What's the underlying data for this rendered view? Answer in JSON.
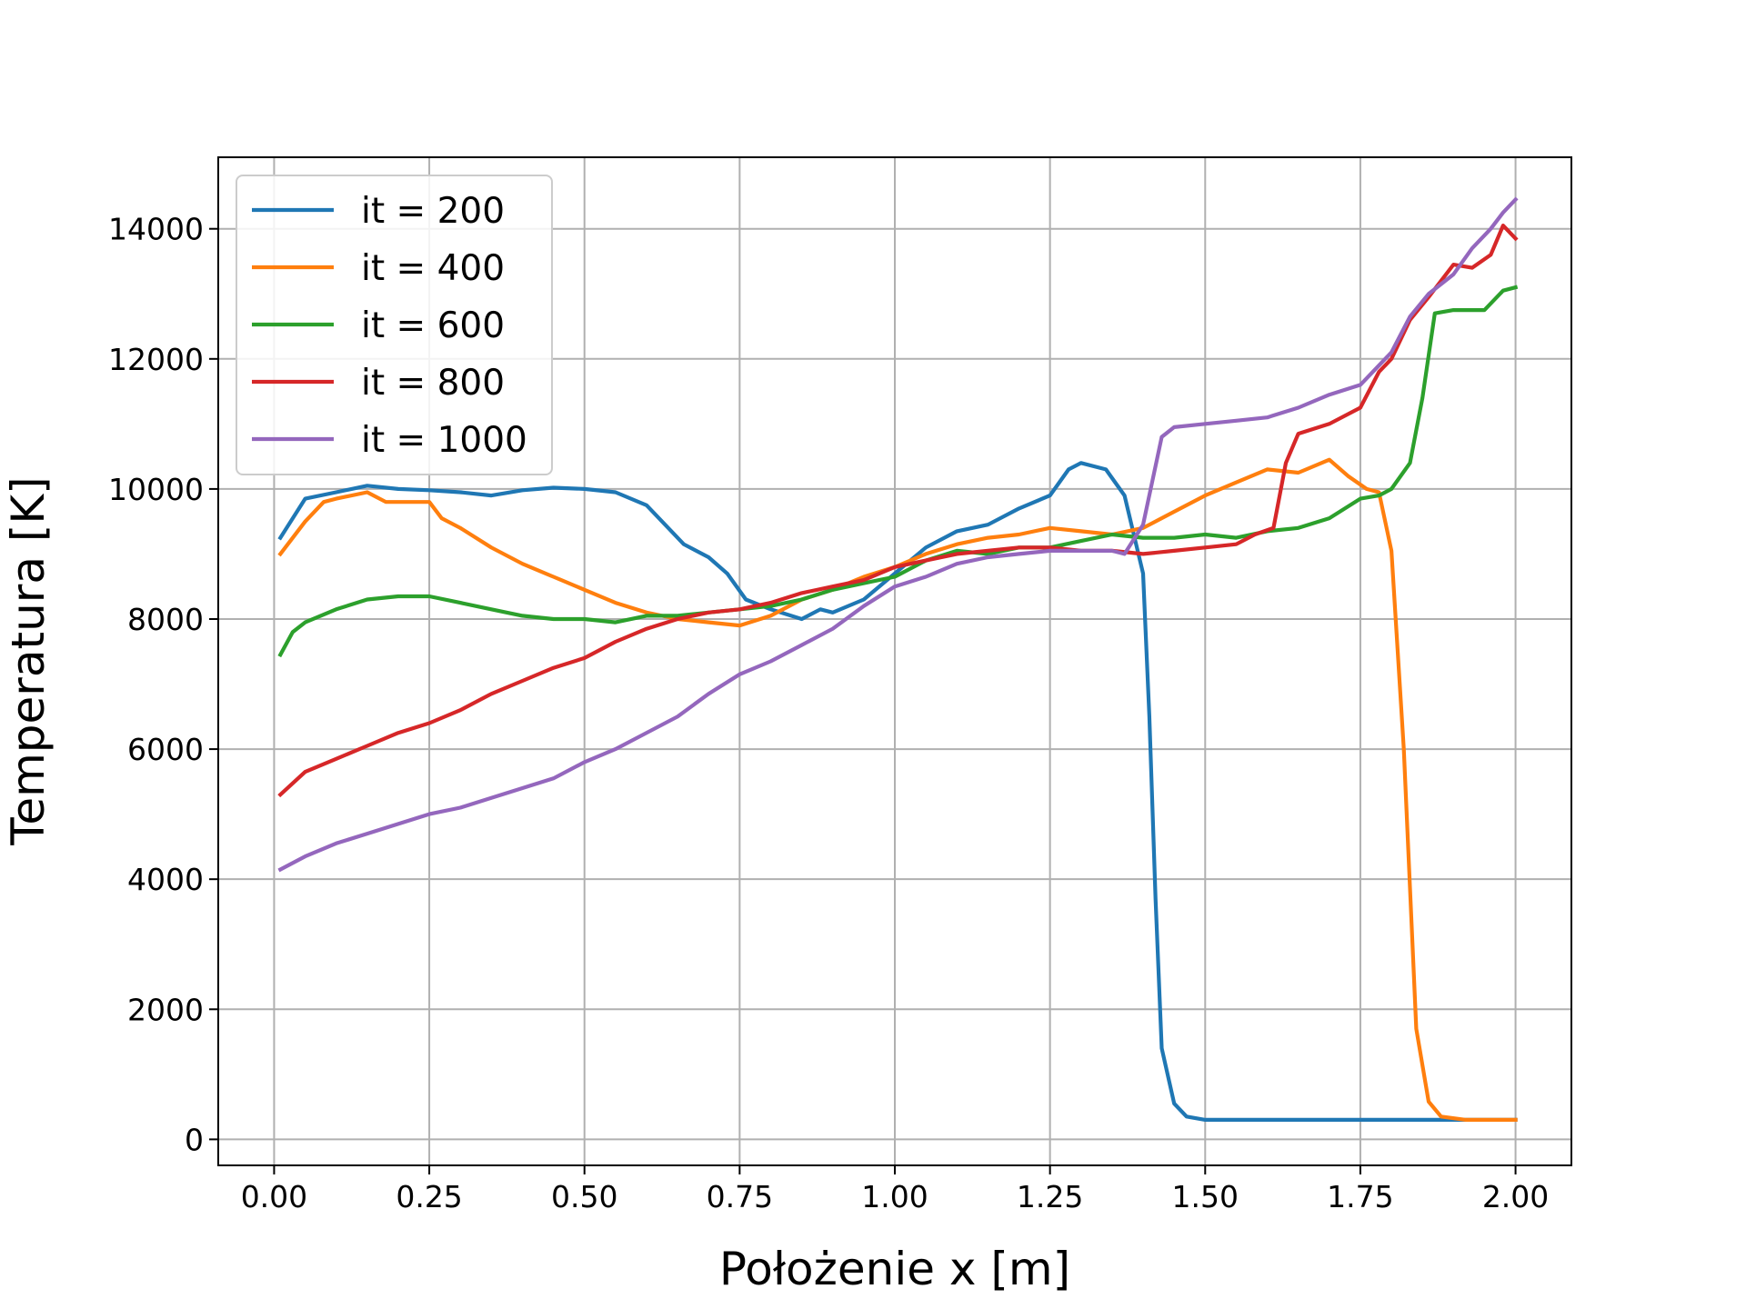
{
  "chart_data": {
    "type": "line",
    "title": "",
    "xlabel": "Położenie x [m]",
    "ylabel": "Temperatura [K]",
    "xlim": [
      -0.09,
      2.09
    ],
    "ylim": [
      -400,
      15100
    ],
    "xticks": [
      "0.00",
      "0.25",
      "0.50",
      "0.75",
      "1.00",
      "1.25",
      "1.50",
      "1.75",
      "2.00"
    ],
    "yticks": [
      "0",
      "2000",
      "4000",
      "6000",
      "8000",
      "10000",
      "12000",
      "14000"
    ],
    "grid": true,
    "legend_position": "top-left",
    "series": [
      {
        "name": "it = 200",
        "color": "#1f77b4",
        "x": [
          0.01,
          0.05,
          0.1,
          0.15,
          0.2,
          0.25,
          0.3,
          0.35,
          0.4,
          0.45,
          0.5,
          0.55,
          0.6,
          0.63,
          0.66,
          0.7,
          0.73,
          0.76,
          0.8,
          0.85,
          0.88,
          0.9,
          0.95,
          1.0,
          1.05,
          1.1,
          1.15,
          1.2,
          1.25,
          1.28,
          1.3,
          1.34,
          1.37,
          1.39,
          1.4,
          1.41,
          1.42,
          1.43,
          1.45,
          1.47,
          1.5,
          1.6,
          1.7,
          1.8,
          1.88,
          1.92,
          2.0
        ],
        "values": [
          9250,
          9850,
          9950,
          10050,
          10000,
          9980,
          9950,
          9900,
          9980,
          10020,
          10000,
          9950,
          9750,
          9450,
          9150,
          8950,
          8700,
          8300,
          8150,
          8000,
          8150,
          8100,
          8300,
          8700,
          9100,
          9350,
          9450,
          9700,
          9900,
          10300,
          10400,
          10300,
          9900,
          9100,
          8700,
          6500,
          3700,
          1400,
          550,
          350,
          300,
          300,
          300,
          300,
          300,
          300,
          300
        ]
      },
      {
        "name": "it = 400",
        "color": "#ff7f0e",
        "x": [
          0.01,
          0.05,
          0.08,
          0.1,
          0.15,
          0.18,
          0.2,
          0.25,
          0.27,
          0.3,
          0.35,
          0.4,
          0.45,
          0.5,
          0.55,
          0.6,
          0.65,
          0.7,
          0.75,
          0.8,
          0.85,
          0.9,
          0.95,
          1.0,
          1.05,
          1.1,
          1.15,
          1.2,
          1.25,
          1.3,
          1.35,
          1.4,
          1.45,
          1.5,
          1.55,
          1.6,
          1.65,
          1.7,
          1.73,
          1.76,
          1.78,
          1.8,
          1.82,
          1.84,
          1.86,
          1.88,
          1.92,
          2.0
        ],
        "values": [
          9000,
          9500,
          9800,
          9850,
          9950,
          9800,
          9800,
          9800,
          9550,
          9400,
          9100,
          8850,
          8650,
          8450,
          8250,
          8100,
          8000,
          7950,
          7900,
          8050,
          8300,
          8450,
          8650,
          8800,
          9000,
          9150,
          9250,
          9300,
          9400,
          9350,
          9300,
          9400,
          9650,
          9900,
          10100,
          10300,
          10250,
          10450,
          10200,
          10000,
          9950,
          9050,
          6000,
          1700,
          580,
          350,
          300,
          300
        ]
      },
      {
        "name": "it = 600",
        "color": "#2ca02c",
        "x": [
          0.01,
          0.03,
          0.05,
          0.1,
          0.15,
          0.2,
          0.25,
          0.3,
          0.35,
          0.4,
          0.45,
          0.5,
          0.55,
          0.6,
          0.65,
          0.7,
          0.75,
          0.8,
          0.85,
          0.9,
          0.95,
          1.0,
          1.05,
          1.1,
          1.15,
          1.2,
          1.25,
          1.3,
          1.35,
          1.4,
          1.45,
          1.5,
          1.55,
          1.6,
          1.65,
          1.7,
          1.75,
          1.78,
          1.8,
          1.83,
          1.85,
          1.87,
          1.9,
          1.95,
          1.98,
          2.0
        ],
        "values": [
          7450,
          7800,
          7950,
          8150,
          8300,
          8350,
          8350,
          8250,
          8150,
          8050,
          8000,
          8000,
          7950,
          8050,
          8050,
          8100,
          8150,
          8200,
          8300,
          8450,
          8550,
          8650,
          8900,
          9050,
          9000,
          9100,
          9100,
          9200,
          9300,
          9250,
          9250,
          9300,
          9250,
          9350,
          9400,
          9550,
          9850,
          9900,
          10000,
          10400,
          11400,
          12700,
          12750,
          12750,
          13050,
          13100
        ]
      },
      {
        "name": "it = 800",
        "color": "#d62728",
        "x": [
          0.01,
          0.05,
          0.1,
          0.15,
          0.2,
          0.25,
          0.3,
          0.35,
          0.4,
          0.45,
          0.5,
          0.55,
          0.6,
          0.65,
          0.7,
          0.75,
          0.8,
          0.85,
          0.9,
          0.95,
          1.0,
          1.05,
          1.1,
          1.15,
          1.2,
          1.25,
          1.3,
          1.35,
          1.4,
          1.45,
          1.5,
          1.55,
          1.58,
          1.61,
          1.63,
          1.65,
          1.7,
          1.75,
          1.78,
          1.8,
          1.83,
          1.86,
          1.9,
          1.93,
          1.96,
          1.98,
          2.0
        ],
        "values": [
          5300,
          5650,
          5850,
          6050,
          6250,
          6400,
          6600,
          6850,
          7050,
          7250,
          7400,
          7650,
          7850,
          8000,
          8100,
          8150,
          8250,
          8400,
          8500,
          8600,
          8800,
          8900,
          9000,
          9050,
          9100,
          9100,
          9050,
          9050,
          9000,
          9050,
          9100,
          9150,
          9300,
          9400,
          10400,
          10850,
          11000,
          11250,
          11800,
          12000,
          12600,
          12950,
          13450,
          13400,
          13600,
          14050,
          13850
        ]
      },
      {
        "name": "it = 1000",
        "color": "#9467bd",
        "x": [
          0.01,
          0.05,
          0.1,
          0.15,
          0.2,
          0.25,
          0.3,
          0.35,
          0.4,
          0.45,
          0.5,
          0.55,
          0.6,
          0.65,
          0.7,
          0.75,
          0.8,
          0.85,
          0.9,
          0.95,
          1.0,
          1.05,
          1.1,
          1.15,
          1.2,
          1.25,
          1.3,
          1.35,
          1.37,
          1.4,
          1.43,
          1.45,
          1.5,
          1.55,
          1.6,
          1.65,
          1.7,
          1.75,
          1.78,
          1.8,
          1.83,
          1.86,
          1.9,
          1.93,
          1.96,
          1.98,
          2.0
        ],
        "values": [
          4150,
          4350,
          4550,
          4700,
          4850,
          5000,
          5100,
          5250,
          5400,
          5550,
          5800,
          6000,
          6250,
          6500,
          6850,
          7150,
          7350,
          7600,
          7850,
          8200,
          8500,
          8650,
          8850,
          8950,
          9000,
          9050,
          9050,
          9050,
          9000,
          9450,
          10800,
          10950,
          11000,
          11050,
          11100,
          11250,
          11450,
          11600,
          11900,
          12100,
          12650,
          13000,
          13300,
          13700,
          14000,
          14250,
          14450
        ]
      }
    ]
  }
}
